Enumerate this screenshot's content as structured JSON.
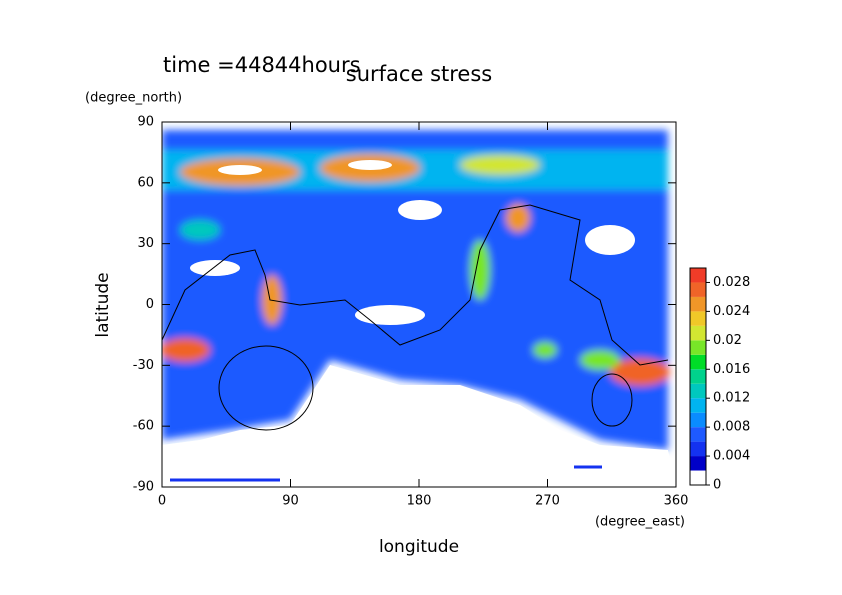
{
  "chart_data": {
    "type": "contour",
    "title": "surface stress",
    "annotation": "time =44844hours",
    "x_label": "longitude",
    "x_unit": "(degree_east)",
    "y_label": "latitude",
    "y_unit": "(degree_north)",
    "xlim": [
      0,
      360
    ],
    "xticks": [
      0,
      90,
      180,
      270,
      360
    ],
    "ylim": [
      -90,
      90
    ],
    "yticks": [
      -90,
      -60,
      -30,
      0,
      30,
      60,
      90
    ],
    "colorbar": {
      "levels": [
        0,
        0.002,
        0.004,
        0.006,
        0.008,
        0.01,
        0.012,
        0.014,
        0.016,
        0.018,
        0.02,
        0.022,
        0.024,
        0.026,
        0.028,
        0.03
      ],
      "colors": [
        "#ffffff",
        "#0000c8",
        "#1432f0",
        "#1e5aff",
        "#0a8cff",
        "#00b4f0",
        "#00c8be",
        "#00d28c",
        "#00dc28",
        "#78e628",
        "#d2e632",
        "#f0c828",
        "#f09628",
        "#f06428",
        "#f03c28"
      ],
      "ticks": [
        0,
        0.004,
        0.008,
        0.012,
        0.016,
        0.02,
        0.024,
        0.028
      ]
    }
  }
}
